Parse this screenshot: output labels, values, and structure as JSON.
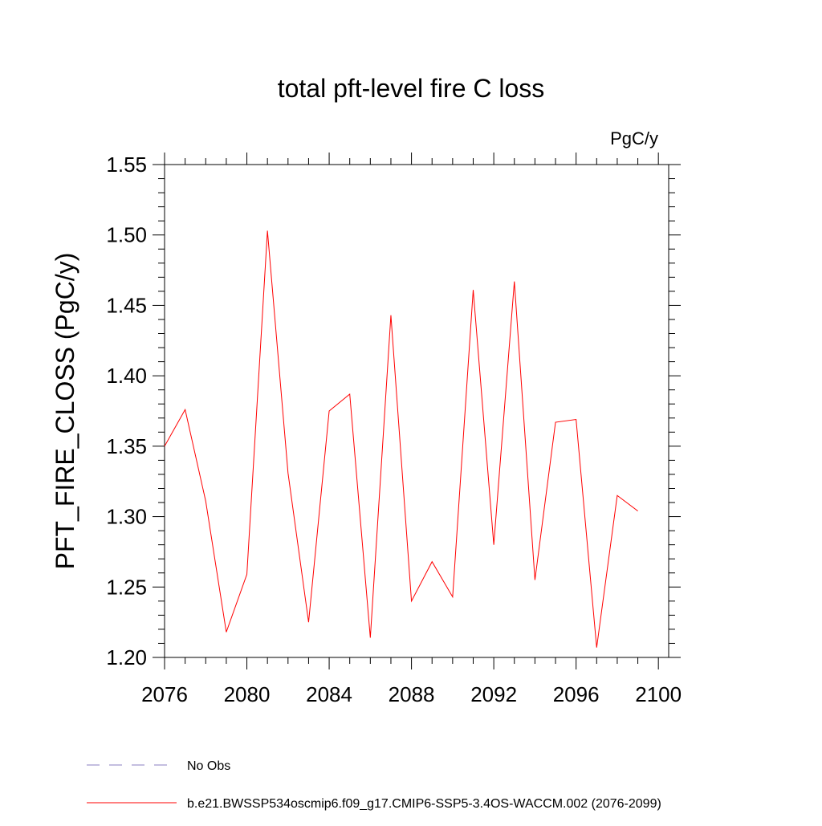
{
  "chart_data": {
    "type": "line",
    "title": "total pft-level fire C loss",
    "units": "PgC/y",
    "y_label": "PFT_FIRE_CLOSS  (PgC/y)",
    "x": [
      2076,
      2077,
      2078,
      2079,
      2080,
      2081,
      2082,
      2083,
      2084,
      2085,
      2086,
      2087,
      2088,
      2089,
      2090,
      2091,
      2092,
      2093,
      2094,
      2095,
      2096,
      2097,
      2098,
      2099
    ],
    "series": [
      {
        "name": "b.e21.BWSSP534oscmip6.f09_g17.CMIP6-SSP5-3.4OS-WACCM.002 (2076-2099)",
        "color": "#ff0000",
        "values": [
          1.35,
          1.376,
          1.311,
          1.218,
          1.259,
          1.503,
          1.331,
          1.225,
          1.375,
          1.387,
          1.214,
          1.443,
          1.24,
          1.268,
          1.243,
          1.461,
          1.28,
          1.467,
          1.255,
          1.367,
          1.369,
          1.207,
          1.315,
          1.304
        ]
      }
    ],
    "legend_extra": [
      {
        "name": "No Obs",
        "color": "#8a7fc0",
        "dashed": true
      }
    ],
    "xlim": [
      2076,
      2100.5
    ],
    "xticks": [
      2076,
      2080,
      2084,
      2088,
      2092,
      2096,
      2100
    ],
    "ylim": [
      1.2,
      1.55
    ],
    "yticks": [
      {
        "value": 1.2,
        "label": "1.20"
      },
      {
        "value": 1.25,
        "label": "1.25"
      },
      {
        "value": 1.3,
        "label": "1.30"
      },
      {
        "value": 1.35,
        "label": "1.35"
      },
      {
        "value": 1.4,
        "label": "1.40"
      },
      {
        "value": 1.45,
        "label": "1.45"
      },
      {
        "value": 1.5,
        "label": "1.50"
      },
      {
        "value": 1.55,
        "label": "1.55"
      }
    ]
  }
}
